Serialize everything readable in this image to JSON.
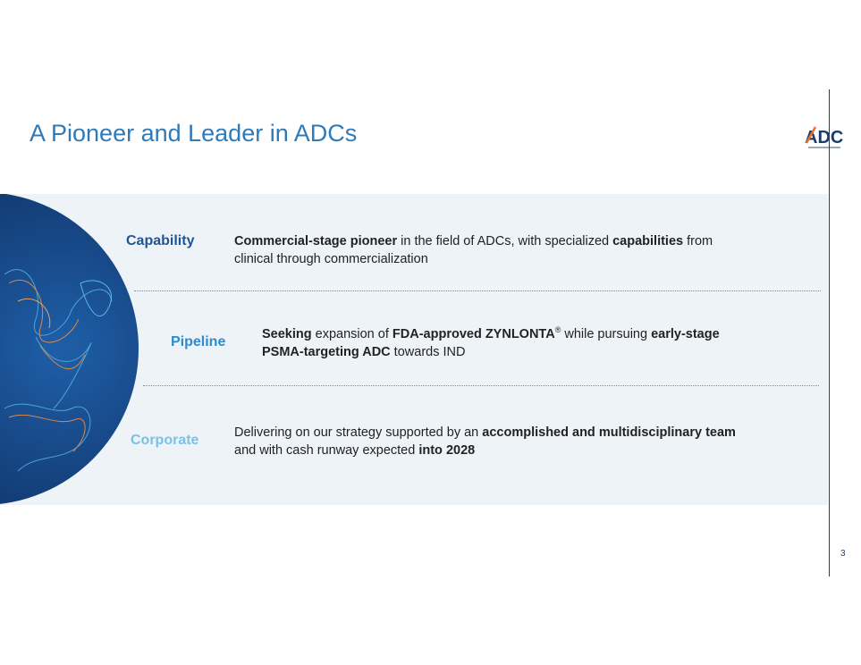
{
  "title": "A Pioneer and Leader in ADCs",
  "logo": {
    "text": "ADC"
  },
  "page_number": "3",
  "rows": [
    {
      "label": "Capability",
      "label_color": "#1f5596",
      "line1": [
        {
          "b": "Commercial-stage pioneer"
        },
        {
          "t": " in the field of ADCs, with specialized "
        },
        {
          "b": "capabilities"
        },
        {
          "t": " from"
        }
      ],
      "line2": [
        {
          "t": "clinical through commercialization"
        }
      ]
    },
    {
      "label": "Pipeline",
      "label_color": "#2f8bc9",
      "line1": [
        {
          "b": "Seeking"
        },
        {
          "t": " expansion of "
        },
        {
          "b": "FDA-approved ZYNLONTA"
        },
        {
          "sup": "®"
        },
        {
          "t": " while pursuing "
        },
        {
          "b": "early-stage"
        }
      ],
      "line2": [
        {
          "b": "PSMA-targeting ADC"
        },
        {
          "t": " towards IND"
        }
      ]
    },
    {
      "label": "Corporate",
      "label_color": "#7cc0e4",
      "line1": [
        {
          "t": "Delivering on our strategy supported by an "
        },
        {
          "b": "accomplished and multidisciplinary team"
        }
      ],
      "line2": [
        {
          "t": "and with cash runway expected "
        },
        {
          "b": "into 2028"
        }
      ]
    }
  ],
  "colors": {
    "title": "#2f7ab8",
    "band": "#eef3f8",
    "globe_dark": "#0d2d5e",
    "globe_light": "#1f5fa8"
  }
}
